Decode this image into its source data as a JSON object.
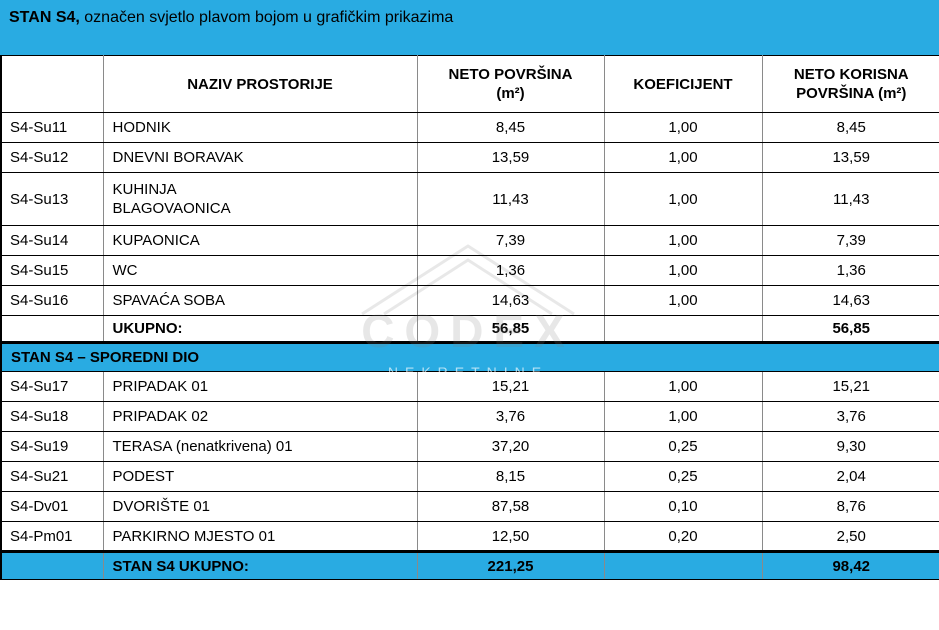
{
  "colors": {
    "accent": "#29abe2"
  },
  "title": {
    "bold": "STAN S4,",
    "rest": " označen svjetlo plavom bojom u grafičkim prikazima"
  },
  "table": {
    "headers": {
      "col1": "",
      "naziv": "NAZIV PROSTORIJE",
      "neto": "NETO POVRŠINA\n(m²)",
      "koef": "KOEFICIJENT",
      "korisna": "NETO KORISNA\nPOVRŠINA (m²)"
    },
    "main_rows": [
      {
        "code": "S4-Su11",
        "name": "HODNIK",
        "neto": "8,45",
        "koef": "1,00",
        "korisna": "8,45"
      },
      {
        "code": "S4-Su12",
        "name": "DNEVNI BORAVAK",
        "neto": "13,59",
        "koef": "1,00",
        "korisna": "13,59"
      },
      {
        "code": "S4-Su13",
        "name": "KUHINJA\nBLAGOVAONICA",
        "neto": "11,43",
        "koef": "1,00",
        "korisna": "11,43"
      },
      {
        "code": "S4-Su14",
        "name": "KUPAONICA",
        "neto": "7,39",
        "koef": "1,00",
        "korisna": "7,39"
      },
      {
        "code": "S4-Su15",
        "name": "WC",
        "neto": "1,36",
        "koef": "1,00",
        "korisna": "1,36"
      },
      {
        "code": "S4-Su16",
        "name": "SPAVAĆA SOBA",
        "neto": "14,63",
        "koef": "1,00",
        "korisna": "14,63"
      }
    ],
    "subtotal": {
      "label": "UKUPNO:",
      "neto": "56,85",
      "koef": "",
      "korisna": "56,85"
    },
    "section2_title": "STAN S4 – SPOREDNI DIO",
    "secondary_rows": [
      {
        "code": "S4-Su17",
        "name": "PRIPADAK 01",
        "neto": "15,21",
        "koef": "1,00",
        "korisna": "15,21"
      },
      {
        "code": "S4-Su18",
        "name": "PRIPADAK 02",
        "neto": "3,76",
        "koef": "1,00",
        "korisna": "3,76"
      },
      {
        "code": "S4-Su19",
        "name": "TERASA (nenatkrivena) 01",
        "neto": "37,20",
        "koef": "0,25",
        "korisna": "9,30"
      },
      {
        "code": "S4-Su21",
        "name": "PODEST",
        "neto": "8,15",
        "koef": "0,25",
        "korisna": "2,04"
      },
      {
        "code": "S4-Dv01",
        "name": "DVORIŠTE 01",
        "neto": "87,58",
        "koef": "0,10",
        "korisna": "8,76"
      },
      {
        "code": "S4-Pm01",
        "name": "PARKIRNO MJESTO 01",
        "neto": "12,50",
        "koef": "0,20",
        "korisna": "2,50"
      }
    ],
    "total": {
      "label": "STAN S4 UKUPNO:",
      "neto": "221,25",
      "koef": "",
      "korisna": "98,42"
    }
  },
  "watermark": {
    "brand": "CODEX",
    "subtitle": "NEKRETNINE"
  }
}
